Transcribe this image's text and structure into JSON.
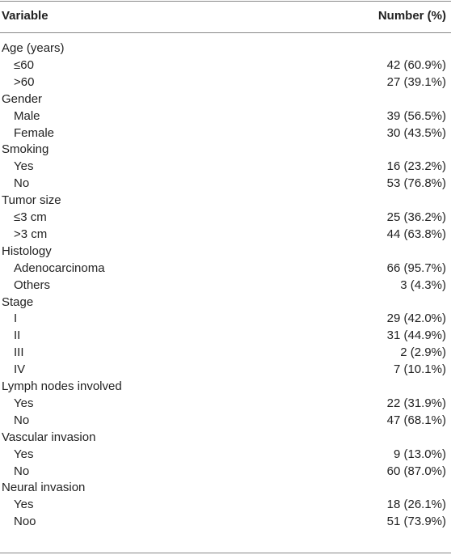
{
  "table": {
    "header": [
      "Variable",
      "Number (%)"
    ],
    "groups": [
      {
        "label": "Age (years)",
        "rows": [
          [
            "≤60",
            "42 (60.9%)"
          ],
          [
            ">60",
            "27 (39.1%)"
          ]
        ]
      },
      {
        "label": "Gender",
        "rows": [
          [
            "Male",
            "39 (56.5%)"
          ],
          [
            "Female",
            "30 (43.5%)"
          ]
        ]
      },
      {
        "label": "Smoking",
        "rows": [
          [
            "Yes",
            "16 (23.2%)"
          ],
          [
            "No",
            "53 (76.8%)"
          ]
        ]
      },
      {
        "label": "Tumor size",
        "rows": [
          [
            "≤3 cm",
            "25 (36.2%)"
          ],
          [
            ">3 cm",
            "44 (63.8%)"
          ]
        ]
      },
      {
        "label": "Histology",
        "rows": [
          [
            "Adenocarcinoma",
            "66 (95.7%)"
          ],
          [
            "Others",
            "3 (4.3%)"
          ]
        ]
      },
      {
        "label": "Stage",
        "rows": [
          [
            "I",
            "29 (42.0%)"
          ],
          [
            "II",
            "31 (44.9%)"
          ],
          [
            "III",
            "2 (2.9%)"
          ],
          [
            "IV",
            "7 (10.1%)"
          ]
        ]
      },
      {
        "label": "Lymph nodes involved",
        "rows": [
          [
            "Yes",
            "22 (31.9%)"
          ],
          [
            "No",
            "47 (68.1%)"
          ]
        ]
      },
      {
        "label": "Vascular invasion",
        "rows": [
          [
            "Yes",
            "9 (13.0%)"
          ],
          [
            "No",
            "60 (87.0%)"
          ]
        ]
      },
      {
        "label": "Neural invasion",
        "rows": [
          [
            "Yes",
            "18 (26.1%)"
          ],
          [
            "Noo",
            "51 (73.9%)"
          ]
        ]
      }
    ]
  }
}
